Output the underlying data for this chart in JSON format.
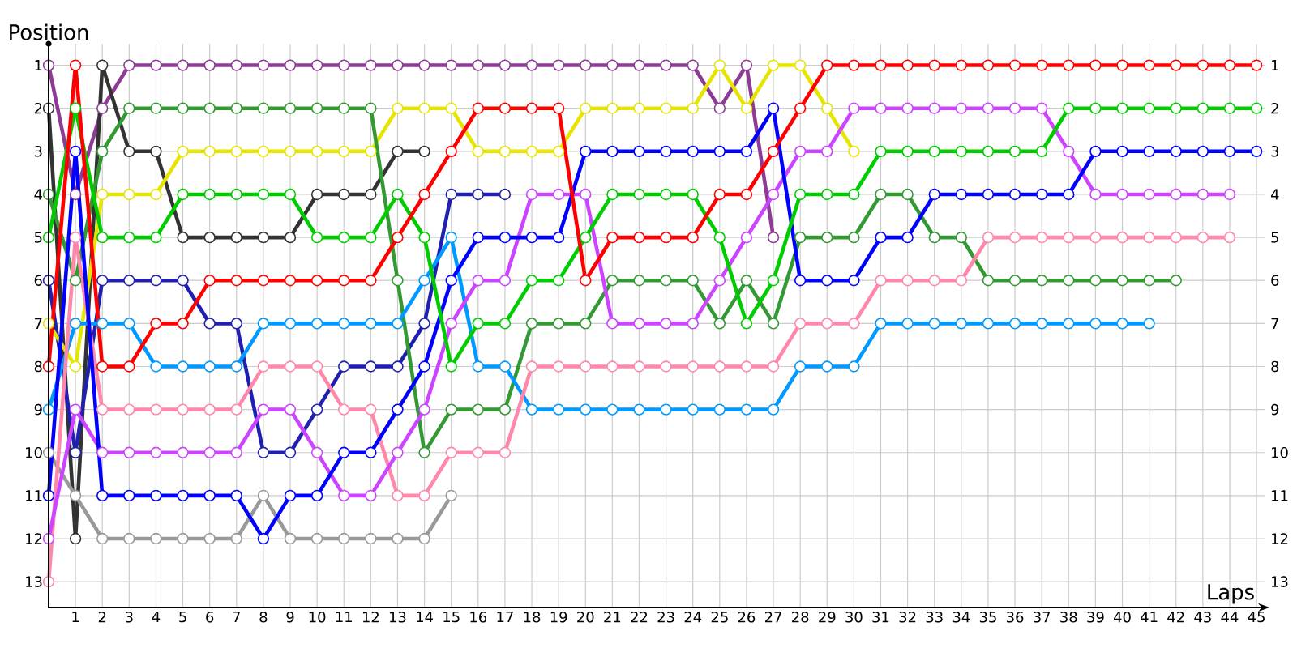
{
  "chart_data": {
    "type": "line",
    "xlabel": "Laps",
    "ylabel": "Position",
    "x": [
      0,
      1,
      2,
      3,
      4,
      5,
      6,
      7,
      8,
      9,
      10,
      11,
      12,
      13,
      14,
      15,
      16,
      17,
      18,
      19,
      20,
      21,
      22,
      23,
      24,
      25,
      26,
      27,
      28,
      29,
      30,
      31,
      32,
      33,
      34,
      35,
      36,
      37,
      38,
      39,
      40,
      41,
      42,
      43,
      44,
      45
    ],
    "xlim": [
      0,
      45.3
    ],
    "xticks": [
      1,
      2,
      3,
      4,
      5,
      6,
      7,
      8,
      9,
      10,
      11,
      12,
      13,
      14,
      15,
      16,
      17,
      18,
      19,
      20,
      21,
      22,
      23,
      24,
      25,
      26,
      27,
      28,
      29,
      30,
      31,
      32,
      33,
      34,
      35,
      36,
      37,
      38,
      39,
      40,
      41,
      42,
      43,
      44,
      45
    ],
    "ylim": [
      13.6,
      0.5
    ],
    "yticks": [
      1,
      2,
      3,
      4,
      5,
      6,
      7,
      8,
      9,
      10,
      11,
      12,
      13
    ],
    "y2lim": [
      13.6,
      0.5
    ],
    "y2ticks": [
      1,
      2,
      3,
      4,
      5,
      6,
      7,
      8,
      9,
      10,
      11,
      12,
      13
    ],
    "grid": true,
    "marker": "circle",
    "line_style": "solid",
    "series": [
      {
        "color": "#8e3b95",
        "values": [
          1,
          4,
          2,
          1,
          1,
          1,
          1,
          1,
          1,
          1,
          1,
          1,
          1,
          1,
          1,
          1,
          1,
          1,
          1,
          1,
          1,
          1,
          1,
          1,
          1,
          2,
          1,
          5,
          null,
          null,
          null,
          null,
          null,
          null,
          null,
          null,
          null,
          null,
          null,
          null,
          null,
          null,
          null,
          null,
          null,
          null
        ]
      },
      {
        "color": "#333333",
        "values": [
          2,
          12,
          1,
          3,
          3,
          5,
          5,
          5,
          5,
          5,
          4,
          4,
          4,
          3,
          3,
          null,
          null,
          null,
          null,
          null,
          null,
          null,
          null,
          null,
          null,
          null,
          null,
          null,
          null,
          null,
          null,
          null,
          null,
          null,
          null,
          null,
          null,
          null,
          null,
          null,
          null,
          null,
          null,
          null,
          null,
          null
        ]
      },
      {
        "color": "#999999",
        "values": [
          10,
          11,
          12,
          12,
          12,
          12,
          12,
          12,
          11,
          12,
          12,
          12,
          12,
          12,
          12,
          11,
          null,
          null,
          null,
          null,
          null,
          null,
          null,
          null,
          null,
          null,
          null,
          null,
          null,
          null,
          null,
          null,
          null,
          null,
          null,
          null,
          null,
          null,
          null,
          null,
          null,
          null,
          null,
          null,
          null,
          null
        ]
      },
      {
        "color": "#2020b0",
        "values": [
          6,
          10,
          6,
          6,
          6,
          6,
          7,
          7,
          10,
          10,
          9,
          8,
          8,
          8,
          7,
          4,
          4,
          4,
          null,
          null,
          null,
          null,
          null,
          null,
          null,
          null,
          null,
          null,
          null,
          null,
          null,
          null,
          null,
          null,
          null,
          null,
          null,
          null,
          null,
          null,
          null,
          null,
          null,
          null,
          null,
          null
        ]
      },
      {
        "color": "#e5e500",
        "values": [
          7,
          8,
          4,
          4,
          4,
          3,
          3,
          3,
          3,
          3,
          3,
          3,
          3,
          2,
          2,
          2,
          3,
          3,
          3,
          3,
          2,
          2,
          2,
          2,
          2,
          1,
          2,
          1,
          1,
          2,
          3,
          null,
          null,
          null,
          null,
          null,
          null,
          null,
          null,
          null,
          null,
          null,
          null,
          null,
          null,
          null
        ]
      },
      {
        "color": "#339933",
        "values": [
          4,
          6,
          3,
          2,
          2,
          2,
          2,
          2,
          2,
          2,
          2,
          2,
          2,
          6,
          10,
          9,
          9,
          9,
          7,
          7,
          7,
          6,
          6,
          6,
          6,
          7,
          6,
          7,
          5,
          5,
          5,
          4,
          4,
          5,
          5,
          6,
          6,
          6,
          6,
          6,
          6,
          6,
          6,
          null,
          null,
          null
        ]
      },
      {
        "color": "#0099ff",
        "values": [
          9,
          7,
          7,
          7,
          8,
          8,
          8,
          8,
          7,
          7,
          7,
          7,
          7,
          7,
          6,
          5,
          8,
          8,
          9,
          9,
          9,
          9,
          9,
          9,
          9,
          9,
          9,
          9,
          8,
          8,
          8,
          7,
          7,
          7,
          7,
          7,
          7,
          7,
          7,
          7,
          7,
          7,
          null,
          null,
          null,
          null
        ]
      },
      {
        "color": "#ff88aa",
        "values": [
          13,
          5,
          9,
          9,
          9,
          9,
          9,
          9,
          8,
          8,
          8,
          9,
          9,
          11,
          11,
          10,
          10,
          10,
          8,
          8,
          8,
          8,
          8,
          8,
          8,
          8,
          8,
          8,
          7,
          7,
          7,
          6,
          6,
          6,
          6,
          5,
          5,
          5,
          5,
          5,
          5,
          5,
          5,
          5,
          5,
          null
        ]
      },
      {
        "color": "#cc44ff",
        "values": [
          12,
          9,
          10,
          10,
          10,
          10,
          10,
          10,
          9,
          9,
          10,
          11,
          11,
          10,
          9,
          7,
          6,
          6,
          4,
          4,
          4,
          7,
          7,
          7,
          7,
          6,
          5,
          4,
          3,
          3,
          2,
          2,
          2,
          2,
          2,
          2,
          2,
          2,
          3,
          4,
          4,
          4,
          4,
          4,
          4,
          null
        ]
      },
      {
        "color": "#0000ff",
        "values": [
          11,
          3,
          11,
          11,
          11,
          11,
          11,
          11,
          12,
          11,
          11,
          10,
          10,
          9,
          8,
          6,
          5,
          5,
          5,
          5,
          3,
          3,
          3,
          3,
          3,
          3,
          3,
          2,
          6,
          6,
          6,
          5,
          5,
          4,
          4,
          4,
          4,
          4,
          4,
          3,
          3,
          3,
          3,
          3,
          3,
          3
        ]
      },
      {
        "color": "#00cc00",
        "values": [
          5,
          2,
          5,
          5,
          5,
          4,
          4,
          4,
          4,
          4,
          5,
          5,
          5,
          4,
          5,
          8,
          7,
          7,
          6,
          6,
          5,
          4,
          4,
          4,
          4,
          5,
          7,
          6,
          4,
          4,
          4,
          3,
          3,
          3,
          3,
          3,
          3,
          3,
          2,
          2,
          2,
          2,
          2,
          2,
          2,
          2
        ]
      },
      {
        "color": "#ff0000",
        "values": [
          8,
          1,
          8,
          8,
          7,
          7,
          6,
          6,
          6,
          6,
          6,
          6,
          6,
          5,
          4,
          3,
          2,
          2,
          2,
          2,
          6,
          5,
          5,
          5,
          5,
          4,
          4,
          3,
          2,
          1,
          1,
          1,
          1,
          1,
          1,
          1,
          1,
          1,
          1,
          1,
          1,
          1,
          1,
          1,
          1,
          1
        ]
      }
    ]
  }
}
